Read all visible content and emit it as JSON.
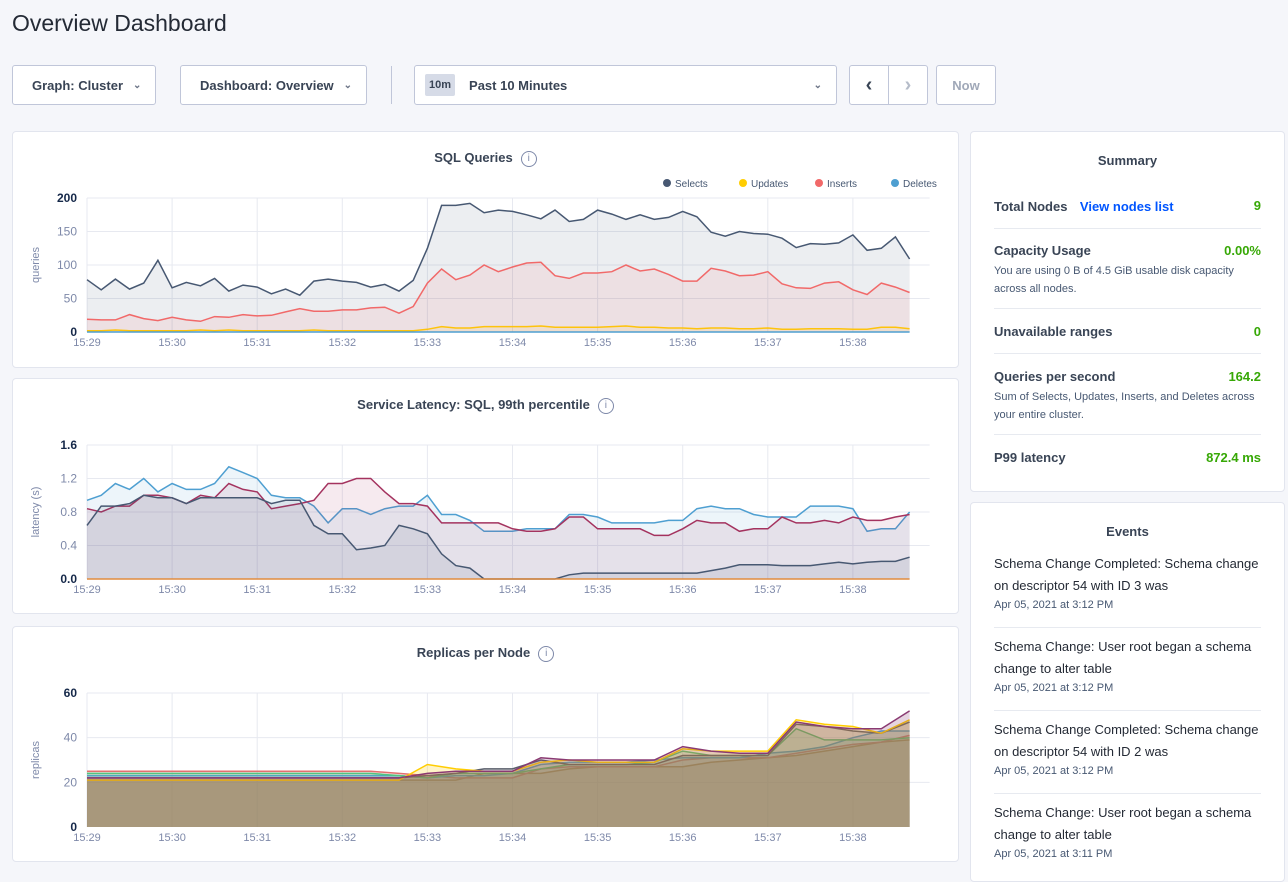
{
  "title": "Overview Dashboard",
  "controls": {
    "graph": "Graph: Cluster",
    "dashboard": "Dashboard: Overview",
    "time_badge": "10m",
    "time_range": "Past 10 Minutes",
    "now": "Now"
  },
  "summary": {
    "title": "Summary",
    "total_nodes": {
      "label": "Total Nodes",
      "link": "View nodes list",
      "value": "9"
    },
    "capacity": {
      "label": "Capacity Usage",
      "value": "0.00%",
      "desc": "You are using 0 B of 4.5 GiB usable disk capacity across all nodes."
    },
    "unavailable": {
      "label": "Unavailable ranges",
      "value": "0"
    },
    "qps": {
      "label": "Queries per second",
      "value": "164.2",
      "desc": "Sum of Selects, Updates, Inserts, and Deletes across your entire cluster."
    },
    "p99": {
      "label": "P99 latency",
      "value": "872.4 ms"
    }
  },
  "events": {
    "title": "Events",
    "items": [
      {
        "text": "Schema Change Completed: Schema change on descriptor 54 with ID 3 was",
        "date": "Apr 05, 2021 at 3:12 PM"
      },
      {
        "text": "Schema Change: User root began a schema change to alter table",
        "date": "Apr 05, 2021 at 3:12 PM"
      },
      {
        "text": "Schema Change Completed: Schema change on descriptor 54 with ID 2 was",
        "date": "Apr 05, 2021 at 3:12 PM"
      },
      {
        "text": "Schema Change: User root began a schema change to alter table",
        "date": "Apr 05, 2021 at 3:11 PM"
      }
    ]
  },
  "chart_data": [
    {
      "type": "area",
      "title": "SQL Queries",
      "ylabel": "queries",
      "ylim": [
        0,
        200
      ],
      "yticks": [
        "0",
        "50",
        "100",
        "150",
        "200"
      ],
      "xticks": [
        "15:29",
        "15:30",
        "15:31",
        "15:32",
        "15:33",
        "15:34",
        "15:35",
        "15:36",
        "15:37",
        "15:38"
      ],
      "grid": true,
      "legend": "top-right",
      "x": [
        "15:29:00",
        "15:29:10",
        "15:29:20",
        "15:29:30",
        "15:29:40",
        "15:29:50",
        "15:30:00",
        "15:30:10",
        "15:30:20",
        "15:30:30",
        "15:30:40",
        "15:30:50",
        "15:31:00",
        "15:31:10",
        "15:31:20",
        "15:31:30",
        "15:31:40",
        "15:31:50",
        "15:32:00",
        "15:32:10",
        "15:32:20",
        "15:32:30",
        "15:32:40",
        "15:32:50",
        "15:33:00",
        "15:33:10",
        "15:33:20",
        "15:33:30",
        "15:33:40",
        "15:33:50",
        "15:34:00",
        "15:34:10",
        "15:34:20",
        "15:34:30",
        "15:34:40",
        "15:34:50",
        "15:35:00",
        "15:35:10",
        "15:35:20",
        "15:35:30",
        "15:35:40",
        "15:35:50",
        "15:36:00",
        "15:36:10",
        "15:36:20",
        "15:36:30",
        "15:36:40",
        "15:36:50",
        "15:37:00",
        "15:37:10",
        "15:37:20",
        "15:37:30",
        "15:37:40",
        "15:37:50",
        "15:38:00",
        "15:38:10",
        "15:38:20",
        "15:38:30",
        "15:38:40"
      ],
      "series": [
        {
          "name": "Selects",
          "color": "#475872",
          "values": [
            78,
            63,
            79,
            64,
            73,
            107,
            66,
            74,
            69,
            80,
            61,
            70,
            67,
            57,
            64,
            55,
            76,
            79,
            76,
            74,
            67,
            71,
            61,
            77,
            125,
            189,
            189,
            192,
            178,
            182,
            180,
            175,
            169,
            182,
            165,
            168,
            182,
            176,
            168,
            175,
            168,
            171,
            180,
            172,
            149,
            143,
            150,
            147,
            146,
            140,
            126,
            132,
            131,
            133,
            145,
            122,
            125,
            142,
            109
          ]
        },
        {
          "name": "Updates",
          "color": "#ffcd02",
          "values": [
            2,
            2,
            3,
            2,
            2,
            2,
            2,
            2,
            3,
            2,
            3,
            2,
            2,
            2,
            2,
            2,
            3,
            2,
            2,
            2,
            2,
            2,
            2,
            2,
            4,
            8,
            6,
            6,
            8,
            8,
            8,
            8,
            9,
            7,
            7,
            7,
            7,
            8,
            9,
            7,
            7,
            6,
            6,
            5,
            6,
            6,
            5,
            5,
            6,
            4,
            4,
            5,
            5,
            5,
            4,
            4,
            7,
            7,
            5
          ]
        },
        {
          "name": "Inserts",
          "color": "#f16969",
          "values": [
            19,
            18,
            18,
            26,
            20,
            17,
            22,
            18,
            16,
            23,
            22,
            26,
            24,
            25,
            30,
            35,
            31,
            31,
            33,
            33,
            36,
            37,
            28,
            38,
            73,
            94,
            78,
            85,
            100,
            90,
            97,
            103,
            104,
            84,
            80,
            88,
            88,
            90,
            100,
            91,
            94,
            86,
            76,
            76,
            95,
            91,
            84,
            85,
            90,
            72,
            66,
            65,
            73,
            75,
            63,
            56,
            73,
            67,
            59
          ]
        },
        {
          "name": "Deletes",
          "color": "#4e9fd1",
          "values": [
            0,
            0,
            0,
            0,
            0,
            0,
            0,
            0,
            0,
            0,
            0,
            0,
            0,
            0,
            0,
            0,
            0,
            0,
            0,
            0,
            0,
            0,
            0,
            0,
            0,
            0,
            0,
            0,
            0,
            0,
            0,
            0,
            0,
            0,
            0,
            0,
            0,
            0,
            0,
            0,
            0,
            0,
            0,
            0,
            0,
            0,
            0,
            0,
            0,
            0,
            0,
            0,
            0,
            0,
            0,
            0,
            0,
            0,
            0
          ]
        }
      ]
    },
    {
      "type": "area",
      "title": "Service Latency: SQL, 99th percentile",
      "ylabel": "latency (s)",
      "ylim": [
        0,
        1.6
      ],
      "yticks": [
        "0.0",
        "0.4",
        "0.8",
        "1.2",
        "1.6"
      ],
      "xticks": [
        "15:29",
        "15:30",
        "15:31",
        "15:32",
        "15:33",
        "15:34",
        "15:35",
        "15:36",
        "15:37",
        "15:38"
      ],
      "grid": true,
      "x": [
        "15:29:00",
        "15:29:10",
        "15:29:20",
        "15:29:30",
        "15:29:40",
        "15:29:50",
        "15:30:00",
        "15:30:10",
        "15:30:20",
        "15:30:30",
        "15:30:40",
        "15:30:50",
        "15:31:00",
        "15:31:10",
        "15:31:20",
        "15:31:30",
        "15:31:40",
        "15:31:50",
        "15:32:00",
        "15:32:10",
        "15:32:20",
        "15:32:30",
        "15:32:40",
        "15:32:50",
        "15:33:00",
        "15:33:10",
        "15:33:20",
        "15:33:30",
        "15:33:40",
        "15:33:50",
        "15:34:00",
        "15:34:10",
        "15:34:20",
        "15:34:30",
        "15:34:40",
        "15:34:50",
        "15:35:00",
        "15:35:10",
        "15:35:20",
        "15:35:30",
        "15:35:40",
        "15:35:50",
        "15:36:00",
        "15:36:10",
        "15:36:20",
        "15:36:30",
        "15:36:40",
        "15:36:50",
        "15:37:00",
        "15:37:10",
        "15:37:20",
        "15:37:30",
        "15:37:40",
        "15:37:50",
        "15:38:00",
        "15:38:10",
        "15:38:20",
        "15:38:30",
        "15:38:40"
      ],
      "series": [
        {
          "color": "#4e9fd1",
          "values": [
            0.94,
            1.0,
            1.14,
            1.07,
            1.2,
            1.04,
            1.14,
            1.07,
            1.07,
            1.14,
            1.34,
            1.27,
            1.2,
            1.0,
            0.97,
            0.97,
            0.87,
            0.67,
            0.84,
            0.84,
            0.77,
            0.84,
            0.87,
            0.87,
            1.0,
            0.77,
            0.77,
            0.7,
            0.57,
            0.57,
            0.57,
            0.6,
            0.6,
            0.6,
            0.77,
            0.77,
            0.74,
            0.67,
            0.67,
            0.67,
            0.67,
            0.7,
            0.7,
            0.84,
            0.87,
            0.84,
            0.84,
            0.77,
            0.74,
            0.74,
            0.74,
            0.87,
            0.87,
            0.87,
            0.84,
            0.57,
            0.6,
            0.6,
            0.8
          ]
        },
        {
          "color": "#a4335f",
          "values": [
            0.84,
            0.8,
            0.87,
            0.87,
            1.0,
            1.0,
            0.97,
            0.9,
            1.0,
            0.97,
            1.14,
            1.07,
            1.04,
            0.84,
            0.87,
            0.9,
            0.94,
            1.14,
            1.14,
            1.2,
            1.2,
            1.04,
            0.9,
            0.9,
            0.87,
            0.67,
            0.67,
            0.67,
            0.67,
            0.67,
            0.6,
            0.57,
            0.57,
            0.6,
            0.74,
            0.74,
            0.6,
            0.6,
            0.6,
            0.6,
            0.52,
            0.52,
            0.6,
            0.7,
            0.67,
            0.67,
            0.57,
            0.6,
            0.6,
            0.74,
            0.67,
            0.67,
            0.7,
            0.67,
            0.74,
            0.7,
            0.7,
            0.74,
            0.77
          ]
        },
        {
          "color": "#475872",
          "values": [
            0.64,
            0.87,
            0.87,
            0.9,
            1.0,
            0.97,
            0.97,
            0.9,
            0.97,
            0.97,
            0.97,
            0.97,
            0.97,
            0.9,
            0.94,
            0.94,
            0.64,
            0.54,
            0.54,
            0.35,
            0.37,
            0.4,
            0.64,
            0.6,
            0.54,
            0.3,
            0.16,
            0.13,
            0,
            0,
            0,
            0,
            0,
            0,
            0.05,
            0.07,
            0.07,
            0.07,
            0.07,
            0.07,
            0.07,
            0.07,
            0.07,
            0.07,
            0.1,
            0.13,
            0.17,
            0.17,
            0.17,
            0.16,
            0.16,
            0.16,
            0.18,
            0.2,
            0.18,
            0.2,
            0.21,
            0.21,
            0.26
          ]
        },
        {
          "color": "#e18c3f",
          "values": [
            0,
            0,
            0,
            0,
            0,
            0,
            0,
            0,
            0,
            0,
            0,
            0,
            0,
            0,
            0,
            0,
            0,
            0,
            0,
            0,
            0,
            0,
            0,
            0,
            0,
            0,
            0,
            0,
            0,
            0,
            0,
            0,
            0,
            0,
            0,
            0,
            0,
            0,
            0,
            0,
            0,
            0,
            0,
            0,
            0,
            0,
            0,
            0,
            0,
            0,
            0,
            0,
            0,
            0,
            0,
            0,
            0,
            0,
            0
          ]
        }
      ]
    },
    {
      "type": "area",
      "title": "Replicas per Node",
      "ylabel": "replicas",
      "ylim": [
        0,
        60
      ],
      "yticks": [
        "0",
        "20",
        "40",
        "60"
      ],
      "xticks": [
        "15:29",
        "15:30",
        "15:31",
        "15:32",
        "15:33",
        "15:34",
        "15:35",
        "15:36",
        "15:37",
        "15:38"
      ],
      "grid": true,
      "x": [
        "15:29:00",
        "15:29:20",
        "15:29:40",
        "15:30:00",
        "15:30:20",
        "15:30:40",
        "15:31:00",
        "15:31:20",
        "15:31:40",
        "15:32:00",
        "15:32:20",
        "15:32:40",
        "15:33:00",
        "15:33:20",
        "15:33:40",
        "15:34:00",
        "15:34:20",
        "15:34:40",
        "15:35:00",
        "15:35:20",
        "15:35:40",
        "15:36:00",
        "15:36:20",
        "15:36:40",
        "15:37:00",
        "15:37:20",
        "15:37:40",
        "15:38:00",
        "15:38:20",
        "15:38:40"
      ],
      "series": [
        {
          "color": "#b8874a",
          "values": [
            21,
            21,
            21,
            21,
            21,
            21,
            21,
            21,
            21,
            21,
            21,
            21,
            21,
            21,
            24,
            24,
            24,
            26,
            27,
            27,
            27,
            27,
            29,
            30,
            31,
            32,
            34,
            36,
            38,
            39
          ]
        },
        {
          "color": "#e36f6f",
          "values": [
            25,
            25,
            25,
            25,
            25,
            25,
            25,
            25,
            25,
            25,
            25,
            24,
            23,
            22,
            22,
            22,
            26,
            27,
            27,
            27,
            27,
            30,
            31,
            31,
            31,
            33,
            35,
            37,
            38,
            41
          ]
        },
        {
          "color": "#4e9fd1",
          "values": [
            23,
            23,
            23,
            23,
            23,
            23,
            23,
            23,
            23,
            23,
            23,
            23,
            22,
            23,
            23,
            24,
            28,
            29,
            29,
            29,
            30,
            31,
            31,
            31,
            33,
            34,
            36,
            40,
            43,
            43
          ]
        },
        {
          "color": "#52c57e",
          "values": [
            24,
            24,
            24,
            24,
            24,
            24,
            24,
            24,
            24,
            24,
            24,
            23,
            22,
            24,
            24,
            24,
            26,
            28,
            28,
            28,
            29,
            34,
            32,
            32,
            32,
            44,
            39,
            39,
            39,
            40
          ]
        },
        {
          "color": "#5a5f6b",
          "values": [
            22,
            22,
            22,
            22,
            22,
            22,
            22,
            22,
            22,
            22,
            22,
            22,
            23,
            24,
            26,
            26,
            30,
            28,
            28,
            28,
            28,
            32,
            32,
            32,
            32,
            46,
            45,
            43,
            42,
            47
          ]
        },
        {
          "color": "#ffcd02",
          "values": [
            21,
            21,
            21,
            21,
            21,
            21,
            21,
            21,
            21,
            21,
            21,
            21,
            28,
            26,
            25,
            25,
            29,
            30,
            29,
            29,
            29,
            35,
            34,
            34,
            34,
            48,
            46,
            45,
            42,
            48
          ]
        },
        {
          "color": "#8a3a72",
          "values": [
            22,
            22,
            22,
            22,
            22,
            22,
            22,
            22,
            22,
            22,
            22,
            22,
            24,
            25,
            25,
            25,
            31,
            30,
            30,
            30,
            30,
            36,
            34,
            33,
            33,
            47,
            45,
            44,
            44,
            52
          ]
        }
      ]
    }
  ]
}
